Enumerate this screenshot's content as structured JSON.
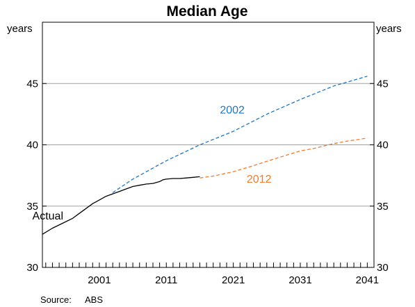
{
  "chart_data": {
    "type": "line",
    "title": "Median Age",
    "y_unit_left": "years",
    "y_unit_right": "years",
    "ylim": [
      30,
      50
    ],
    "yticks": [
      30,
      35,
      40,
      45
    ],
    "xlim": [
      1992.5,
      2042
    ],
    "xticks": [
      2001,
      2011,
      2021,
      2031,
      2041
    ],
    "grid": true,
    "source_label": "Source:",
    "source_value": "ABS",
    "series": [
      {
        "name": "Actual",
        "color": "#000000",
        "style": "solid",
        "label_pos": [
          1991,
          33.9
        ],
        "x": [
          1992.5,
          1994,
          1995.5,
          1997,
          1998,
          1999,
          2000,
          2001,
          2002,
          2003,
          2004,
          2005,
          2006,
          2007,
          2008,
          2009,
          2010,
          2010.5,
          2011,
          2012,
          2013,
          2014,
          2015,
          2016
        ],
        "y": [
          32.7,
          33.2,
          33.6,
          34.0,
          34.4,
          34.8,
          35.2,
          35.5,
          35.8,
          36.0,
          36.2,
          36.4,
          36.6,
          36.7,
          36.8,
          36.85,
          37.0,
          37.15,
          37.2,
          37.25,
          37.25,
          37.3,
          37.35,
          37.4
        ]
      },
      {
        "name": "2002",
        "color": "#1f77c4",
        "style": "dashed",
        "label_pos": [
          2019,
          42.55
        ],
        "x": [
          2003,
          2006,
          2011,
          2016,
          2021,
          2026,
          2031,
          2036,
          2041
        ],
        "y": [
          36.1,
          37.2,
          38.7,
          40.0,
          41.1,
          42.5,
          43.7,
          44.8,
          45.6
        ]
      },
      {
        "name": "2012",
        "color": "#f07c2e",
        "style": "dashed",
        "label_pos": [
          2023,
          36.9
        ],
        "x": [
          2016,
          2018,
          2021,
          2024,
          2026,
          2028,
          2031,
          2033,
          2036,
          2038,
          2041
        ],
        "y": [
          37.3,
          37.45,
          37.8,
          38.3,
          38.65,
          39.0,
          39.5,
          39.7,
          40.1,
          40.3,
          40.55
        ]
      }
    ]
  }
}
